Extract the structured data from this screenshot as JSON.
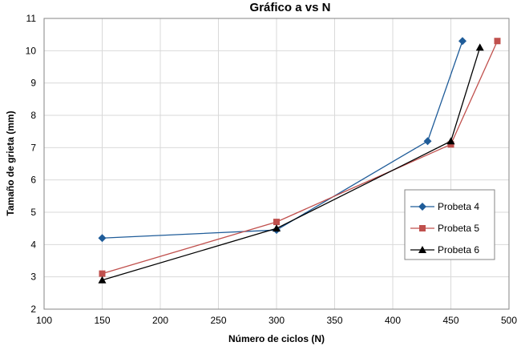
{
  "chart_data": {
    "type": "line",
    "title": "Gráfico a vs N",
    "xlabel": "Número de ciclos (N)",
    "ylabel": "Tamaño de grieta (mm)",
    "xlim": [
      100,
      500
    ],
    "ylim": [
      2,
      11
    ],
    "xticks": [
      100,
      150,
      200,
      250,
      300,
      350,
      400,
      450,
      500
    ],
    "yticks": [
      2,
      3,
      4,
      5,
      6,
      7,
      8,
      9,
      10,
      11
    ],
    "grid": true,
    "legend_position": "right",
    "series": [
      {
        "name": "Probeta 4",
        "color": "#1F5C99",
        "marker": "diamond",
        "x": [
          150,
          300,
          430,
          460
        ],
        "y": [
          4.2,
          4.45,
          7.2,
          10.3
        ]
      },
      {
        "name": "Probeta 5",
        "color": "#C0504D",
        "marker": "square",
        "x": [
          150,
          300,
          450,
          490
        ],
        "y": [
          3.1,
          4.7,
          7.1,
          10.3
        ]
      },
      {
        "name": "Probeta 6",
        "color": "#000000",
        "marker": "triangle",
        "x": [
          150,
          300,
          450,
          475
        ],
        "y": [
          2.9,
          4.5,
          7.2,
          10.1
        ]
      }
    ]
  }
}
